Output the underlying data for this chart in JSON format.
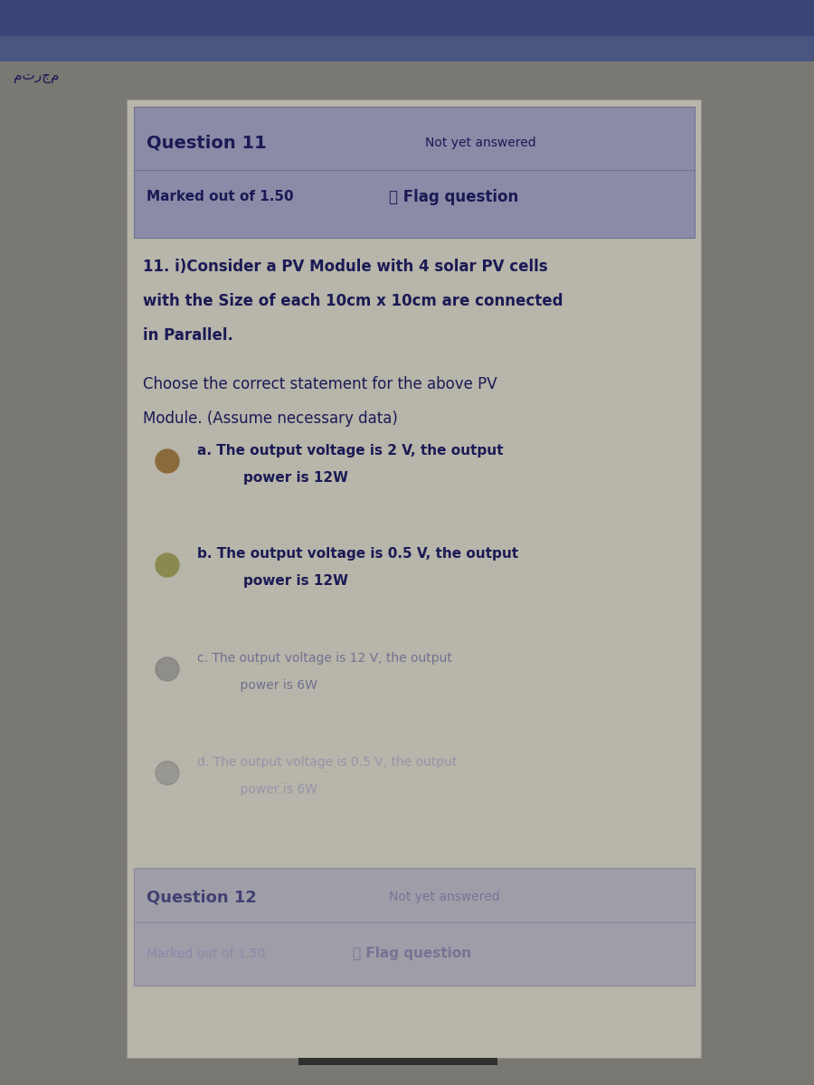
{
  "bg_color": "#7a7873",
  "content_box_color": "#b8b5aa",
  "header_bg": "#8b8ba8",
  "header_line_color": "#707090",
  "question_num": "Question 11",
  "not_answered": "Not yet answered",
  "marked_out": "Marked out of 1.50",
  "flag_question": "ⱥ Flag question",
  "question_text_line1": "11. i)Consider a PV Module with 4 solar PV cells",
  "question_text_line2": "with the Size of each 10cm x 10cm are connected",
  "question_text_line3": "in Parallel.",
  "choose_text_line1": "Choose the correct statement for the above PV",
  "choose_text_line2": "Module. (Assume necessary data)",
  "option_a_line1": "a. The output voltage is 2 V, the output",
  "option_a_line2": "    power is 12W",
  "option_b_line1": "b. The output voltage is 0.5 V, the output",
  "option_b_line2": "    power is 12W",
  "option_c_line1": "c. The output voltage is 12 V, the output",
  "option_c_line2": "    power is 6W",
  "option_d_line1": "d. The output voltage is 0.5 V, the output",
  "option_d_line2": "    power is 6W",
  "q12_text": "Question 12",
  "q12_not_answered": "Not yet answered",
  "q12_marked": "Marked out of 1.50",
  "q12_flag": "ⱥ Flag question",
  "arabic_text": "مترجم",
  "text_dark": "#1a1a55",
  "text_medium": "#2a2a65",
  "text_faded": "#5a5a88",
  "text_very_faded": "#7a7aaa",
  "top_bar_color": "#3a4575",
  "top_bar2_color": "#4a5580",
  "radio_a_color": "#8a6a3a",
  "radio_b_color": "#8a8a50",
  "radio_cd_color": "#7a7a7a",
  "scroll_bar_color": "#303030",
  "grid_color": "#a0a090"
}
